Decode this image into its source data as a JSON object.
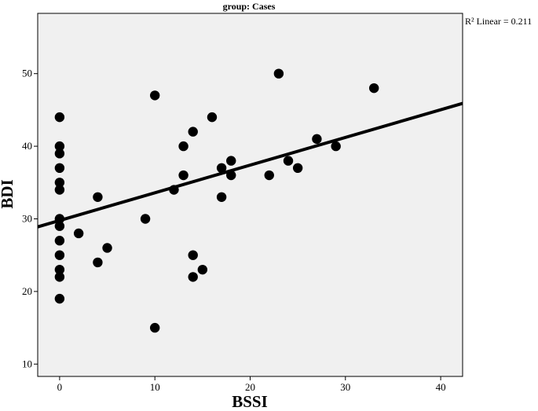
{
  "chart_data": {
    "type": "scatter",
    "title": "group: Cases",
    "xlabel": "BSSI",
    "ylabel": "BDI",
    "xlim": [
      -2.3,
      42.3
    ],
    "ylim": [
      8.3,
      58.3
    ],
    "x_ticks": [
      0,
      10,
      20,
      30,
      40
    ],
    "y_ticks": [
      10,
      20,
      30,
      40,
      50
    ],
    "grid": false,
    "background": "#f0f0f0",
    "marker_color": "#000000",
    "points": [
      {
        "x": 0,
        "y": 44
      },
      {
        "x": 0,
        "y": 40
      },
      {
        "x": 0,
        "y": 39
      },
      {
        "x": 0,
        "y": 37
      },
      {
        "x": 0,
        "y": 35
      },
      {
        "x": 0,
        "y": 34
      },
      {
        "x": 0,
        "y": 30
      },
      {
        "x": 0,
        "y": 29
      },
      {
        "x": 0,
        "y": 27
      },
      {
        "x": 0,
        "y": 25
      },
      {
        "x": 0,
        "y": 23
      },
      {
        "x": 0,
        "y": 22
      },
      {
        "x": 0,
        "y": 19
      },
      {
        "x": 2,
        "y": 28
      },
      {
        "x": 4,
        "y": 33
      },
      {
        "x": 4,
        "y": 24
      },
      {
        "x": 5,
        "y": 26
      },
      {
        "x": 9,
        "y": 30
      },
      {
        "x": 10,
        "y": 47
      },
      {
        "x": 10,
        "y": 15
      },
      {
        "x": 12,
        "y": 34
      },
      {
        "x": 13,
        "y": 40
      },
      {
        "x": 13,
        "y": 36
      },
      {
        "x": 14,
        "y": 42
      },
      {
        "x": 14,
        "y": 25
      },
      {
        "x": 14,
        "y": 22
      },
      {
        "x": 15,
        "y": 23
      },
      {
        "x": 16,
        "y": 44
      },
      {
        "x": 17,
        "y": 37
      },
      {
        "x": 17,
        "y": 33
      },
      {
        "x": 18,
        "y": 38
      },
      {
        "x": 18,
        "y": 36
      },
      {
        "x": 22,
        "y": 36
      },
      {
        "x": 23,
        "y": 50
      },
      {
        "x": 24,
        "y": 38
      },
      {
        "x": 25,
        "y": 37
      },
      {
        "x": 27,
        "y": 41
      },
      {
        "x": 29,
        "y": 40
      },
      {
        "x": 33,
        "y": 48
      }
    ],
    "fit_line": {
      "type": "linear",
      "x": [
        -2.3,
        42.3
      ],
      "y": [
        28.9,
        45.9
      ]
    },
    "annotation": {
      "text": "R² Linear = 0.211",
      "placement": "top-right"
    }
  }
}
